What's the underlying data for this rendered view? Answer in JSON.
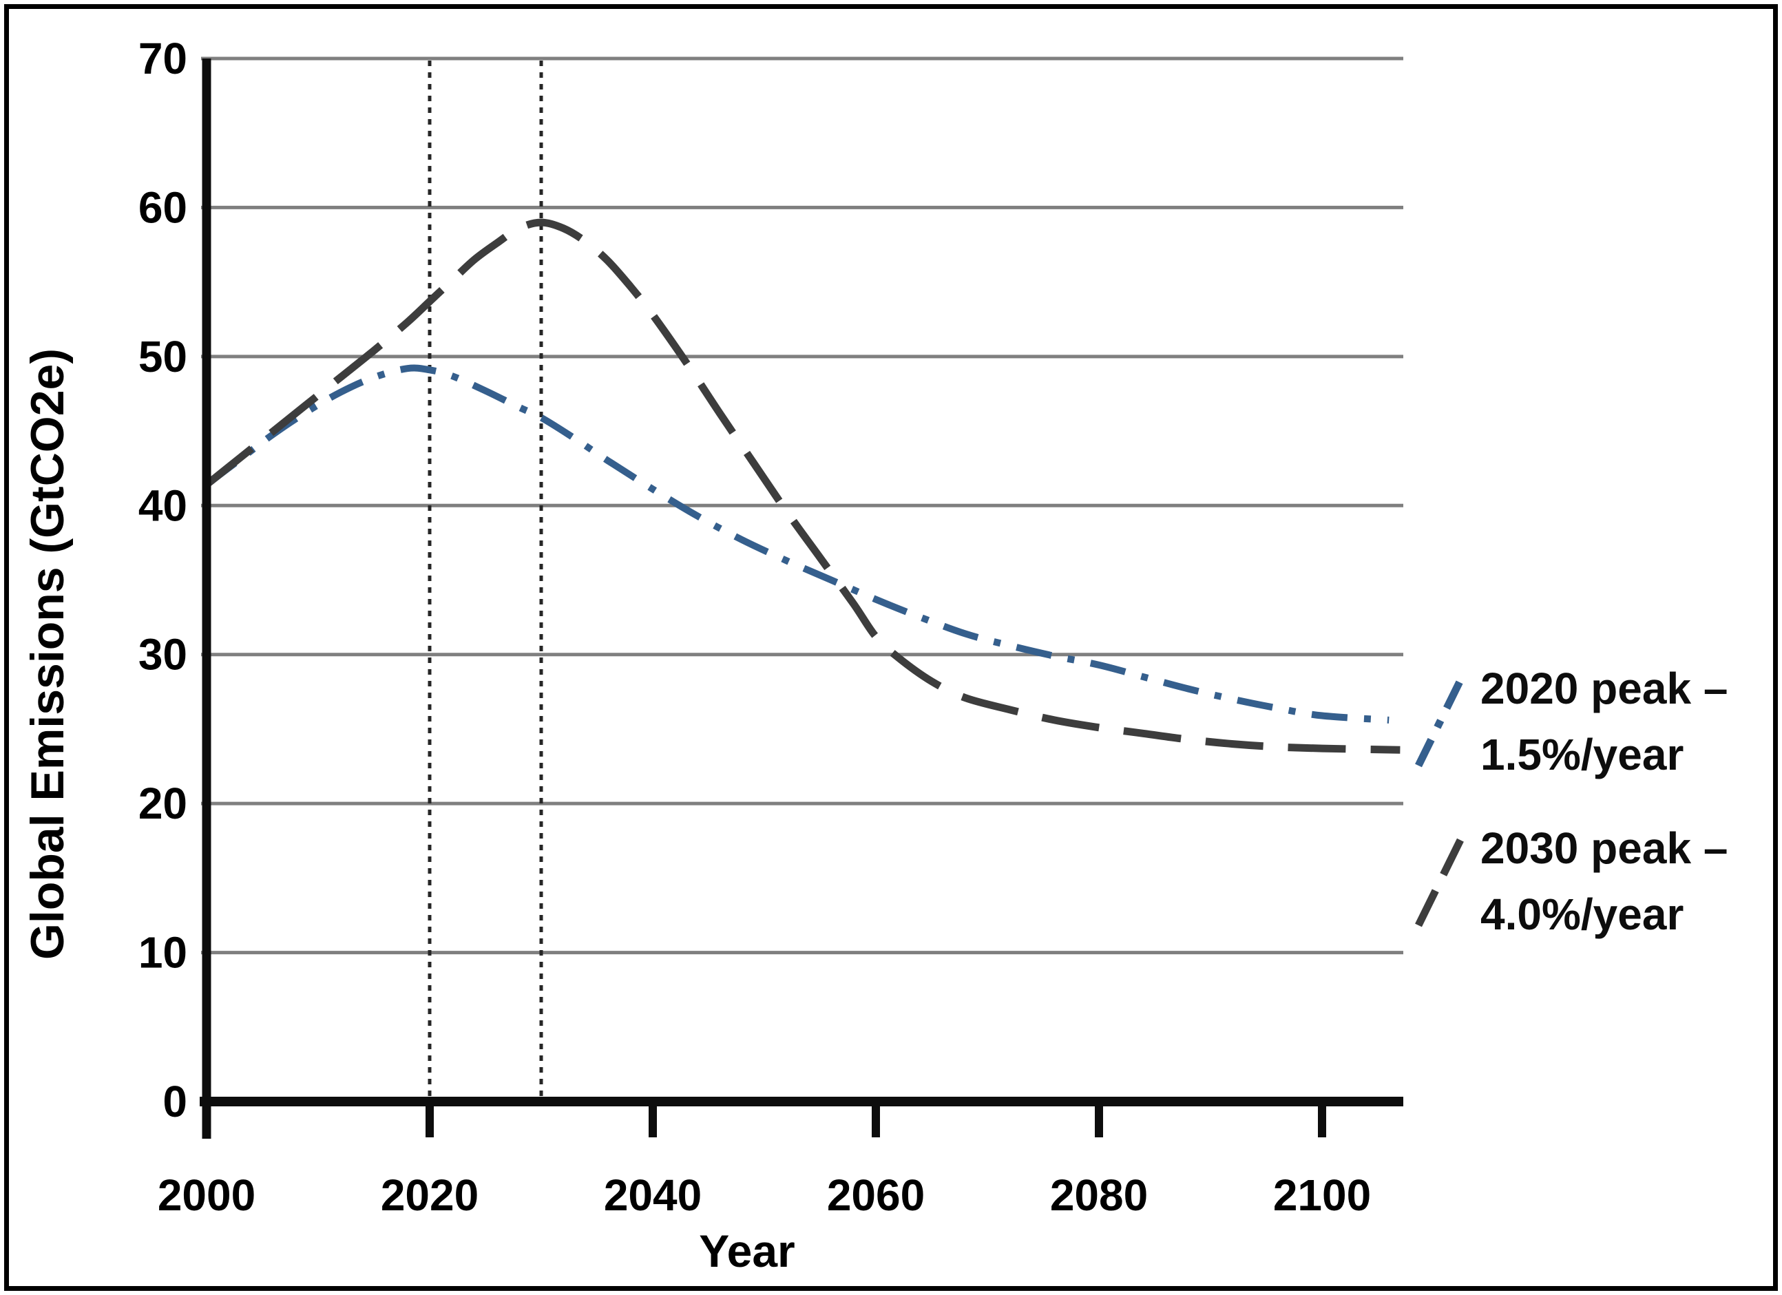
{
  "chart_data": {
    "type": "line",
    "title": "",
    "xlabel": "Year",
    "ylabel": "Global Emissions (GtCO2e)",
    "xlim": [
      2000,
      2107
    ],
    "ylim": [
      0,
      70
    ],
    "x_ticks": [
      2000,
      2020,
      2040,
      2060,
      2080,
      2100
    ],
    "y_ticks": [
      0,
      10,
      20,
      30,
      40,
      50,
      60,
      70
    ],
    "grid": "horizontal",
    "gridline_color": "#7f7f7f",
    "axis_color": "#0d0d0d",
    "background": "#ffffff",
    "marker_lines": [
      {
        "x": 2020,
        "style": "dotted",
        "color": "#262626"
      },
      {
        "x": 2030,
        "style": "dotted",
        "color": "#262626"
      }
    ],
    "legend": {
      "position": "right",
      "entries": [
        {
          "line1": "2020 peak –",
          "line2": "1.5%/year"
        },
        {
          "line1": "2030 peak –",
          "line2": "4.0%/year"
        }
      ]
    },
    "series": [
      {
        "name": "2020 peak – 1.5%/year",
        "color": "#355f8d",
        "dash": "dash-dot",
        "points": [
          [
            2000,
            41.4
          ],
          [
            2003,
            43.1
          ],
          [
            2006,
            44.8
          ],
          [
            2009,
            46.3
          ],
          [
            2012,
            47.6
          ],
          [
            2015,
            48.6
          ],
          [
            2018,
            49.2
          ],
          [
            2020,
            49.1
          ],
          [
            2022,
            48.7
          ],
          [
            2025,
            47.7
          ],
          [
            2028,
            46.6
          ],
          [
            2030,
            45.9
          ],
          [
            2033,
            44.5
          ],
          [
            2036,
            43.0
          ],
          [
            2040,
            41.1
          ],
          [
            2044,
            39.3
          ],
          [
            2048,
            37.7
          ],
          [
            2052,
            36.3
          ],
          [
            2056,
            35.0
          ],
          [
            2060,
            33.7
          ],
          [
            2064,
            32.5
          ],
          [
            2068,
            31.4
          ],
          [
            2072,
            30.6
          ],
          [
            2076,
            29.9
          ],
          [
            2080,
            29.3
          ],
          [
            2084,
            28.5
          ],
          [
            2088,
            27.7
          ],
          [
            2092,
            27.0
          ],
          [
            2096,
            26.4
          ],
          [
            2100,
            25.9
          ],
          [
            2106,
            25.6
          ]
        ]
      },
      {
        "name": "2030 peak – 4.0%/year",
        "color": "#3d3d3d",
        "dash": "long-dash",
        "points": [
          [
            2000,
            41.4
          ],
          [
            2003,
            43.2
          ],
          [
            2006,
            45.0
          ],
          [
            2009,
            46.8
          ],
          [
            2012,
            48.6
          ],
          [
            2015,
            50.4
          ],
          [
            2018,
            52.3
          ],
          [
            2020,
            53.7
          ],
          [
            2022,
            55.1
          ],
          [
            2024,
            56.5
          ],
          [
            2026,
            57.6
          ],
          [
            2028,
            58.6
          ],
          [
            2030,
            59.0
          ],
          [
            2032,
            58.6
          ],
          [
            2034,
            57.7
          ],
          [
            2036,
            56.4
          ],
          [
            2038,
            54.7
          ],
          [
            2040,
            52.8
          ],
          [
            2043,
            49.6
          ],
          [
            2046,
            46.2
          ],
          [
            2049,
            42.9
          ],
          [
            2052,
            39.6
          ],
          [
            2055,
            36.5
          ],
          [
            2058,
            33.4
          ],
          [
            2060,
            31.2
          ],
          [
            2062,
            29.8
          ],
          [
            2065,
            28.2
          ],
          [
            2068,
            27.1
          ],
          [
            2072,
            26.3
          ],
          [
            2076,
            25.6
          ],
          [
            2080,
            25.1
          ],
          [
            2084,
            24.7
          ],
          [
            2088,
            24.3
          ],
          [
            2092,
            24.0
          ],
          [
            2096,
            23.8
          ],
          [
            2100,
            23.7
          ],
          [
            2107,
            23.6
          ]
        ]
      }
    ]
  }
}
